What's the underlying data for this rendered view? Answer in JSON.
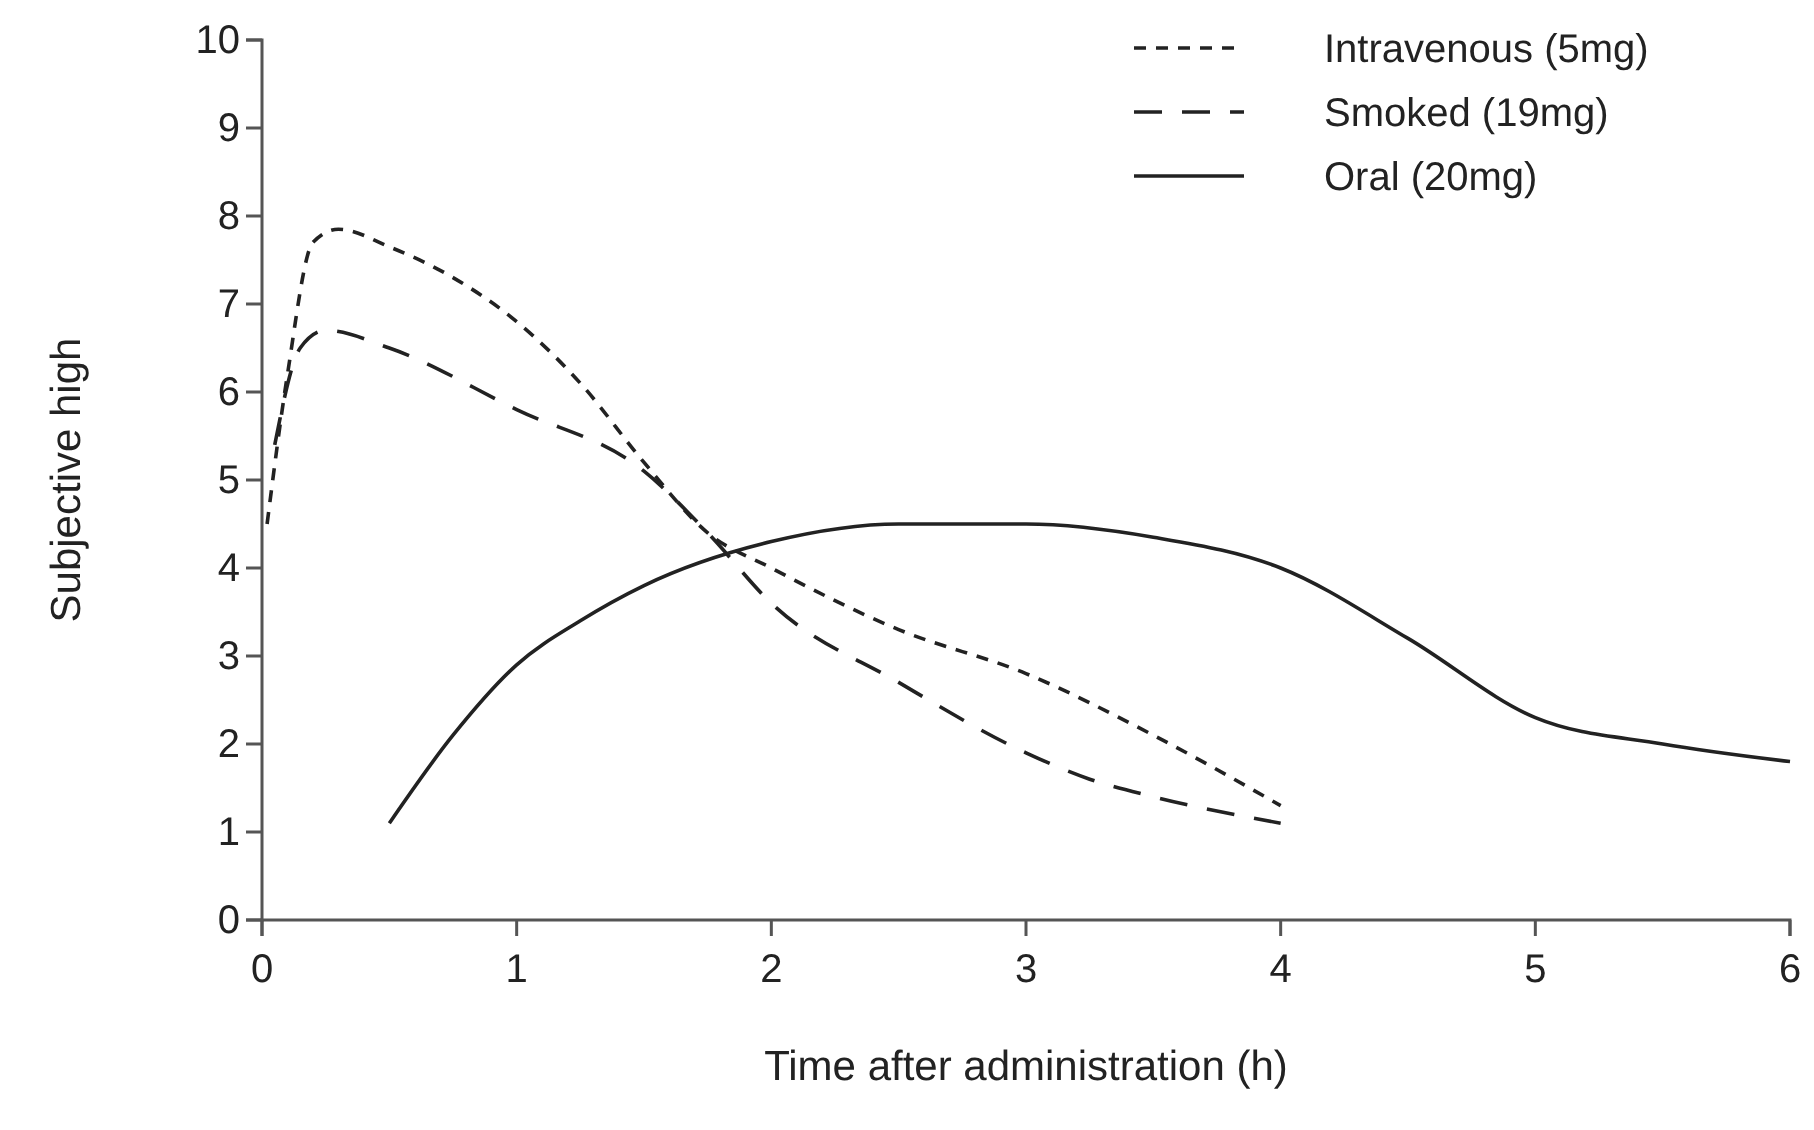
{
  "chart_data": {
    "type": "line",
    "xlabel": "Time after administration (h)",
    "ylabel": "Subjective high",
    "xlim": [
      0,
      6
    ],
    "xticks": [
      0,
      1,
      2,
      3,
      4,
      5,
      6
    ],
    "ylim": [
      0,
      10
    ],
    "yticks": [
      0,
      1,
      2,
      3,
      4,
      5,
      6,
      7,
      8,
      9,
      10
    ],
    "grid": false,
    "legend": "top right",
    "marker": "none",
    "series": [
      {
        "name": "Intravenous (5mg)",
        "color": "#222222",
        "line_style": "dotted",
        "x": [
          0.02,
          0.1,
          0.2,
          0.3,
          0.5,
          0.75,
          1,
          1.25,
          1.5,
          1.75,
          2,
          2.5,
          3,
          3.5,
          4
        ],
        "values": [
          4.5,
          6.2,
          7.7,
          7.85,
          7.65,
          7.3,
          6.8,
          6.1,
          5.2,
          4.4,
          4.0,
          3.3,
          2.8,
          2.1,
          1.3
        ]
      },
      {
        "name": "Smoked (19mg)",
        "color": "#222222",
        "line_style": "dashed",
        "x": [
          0.05,
          0.15,
          0.25,
          0.5,
          1,
          1.5,
          1.75,
          2,
          2.5,
          3,
          3.25,
          3.5,
          4
        ],
        "values": [
          5.4,
          6.5,
          6.7,
          6.5,
          5.8,
          5.1,
          4.4,
          3.6,
          2.7,
          1.9,
          1.6,
          1.4,
          1.1
        ]
      },
      {
        "name": "Oral (20mg)",
        "color": "#222222",
        "line_style": "solid",
        "x": [
          0.5,
          0.75,
          1,
          1.25,
          1.5,
          2,
          2.5,
          3,
          3.5,
          4,
          4.5,
          5,
          5.5,
          6
        ],
        "values": [
          1.1,
          2.1,
          2.9,
          3.4,
          3.8,
          4.3,
          4.5,
          4.5,
          4.35,
          4.0,
          3.2,
          2.3,
          2.0,
          1.8
        ]
      }
    ]
  }
}
